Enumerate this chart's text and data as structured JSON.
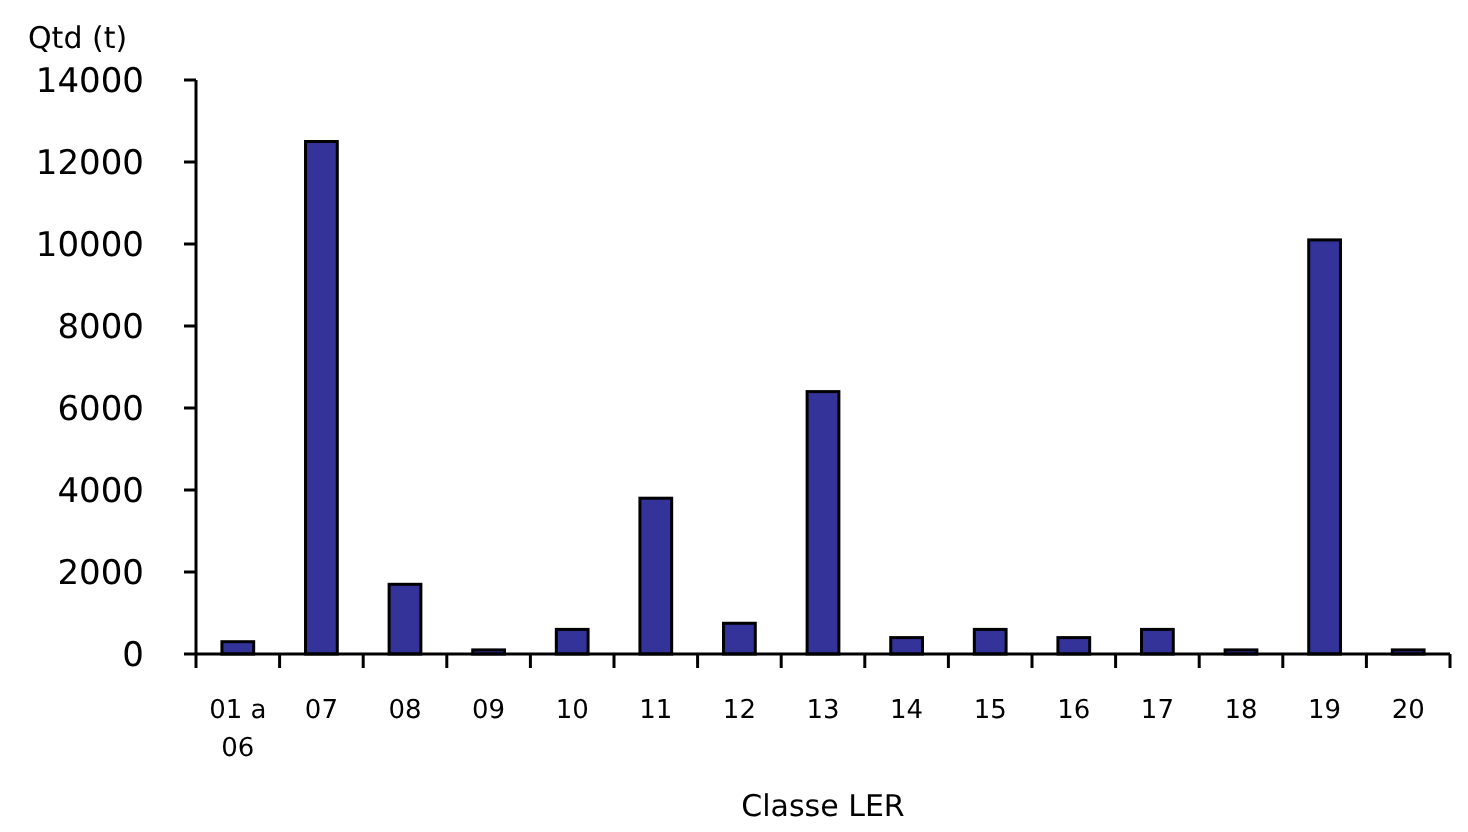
{
  "chart_data": {
    "type": "bar",
    "xlabel": "Classe LER",
    "ylabel": "Qtd (t)",
    "categories": [
      "01 a 06",
      "07",
      "08",
      "09",
      "10",
      "11",
      "12",
      "13",
      "14",
      "15",
      "16",
      "17",
      "18",
      "19",
      "20"
    ],
    "values": [
      300,
      12500,
      1700,
      100,
      600,
      3800,
      750,
      6400,
      400,
      600,
      400,
      600,
      100,
      10100,
      100
    ],
    "color": "#333399",
    "ylim": [
      0,
      14000
    ],
    "yticks": [
      0,
      2000,
      4000,
      6000,
      8000,
      10000,
      12000,
      14000
    ],
    "grid": false
  }
}
